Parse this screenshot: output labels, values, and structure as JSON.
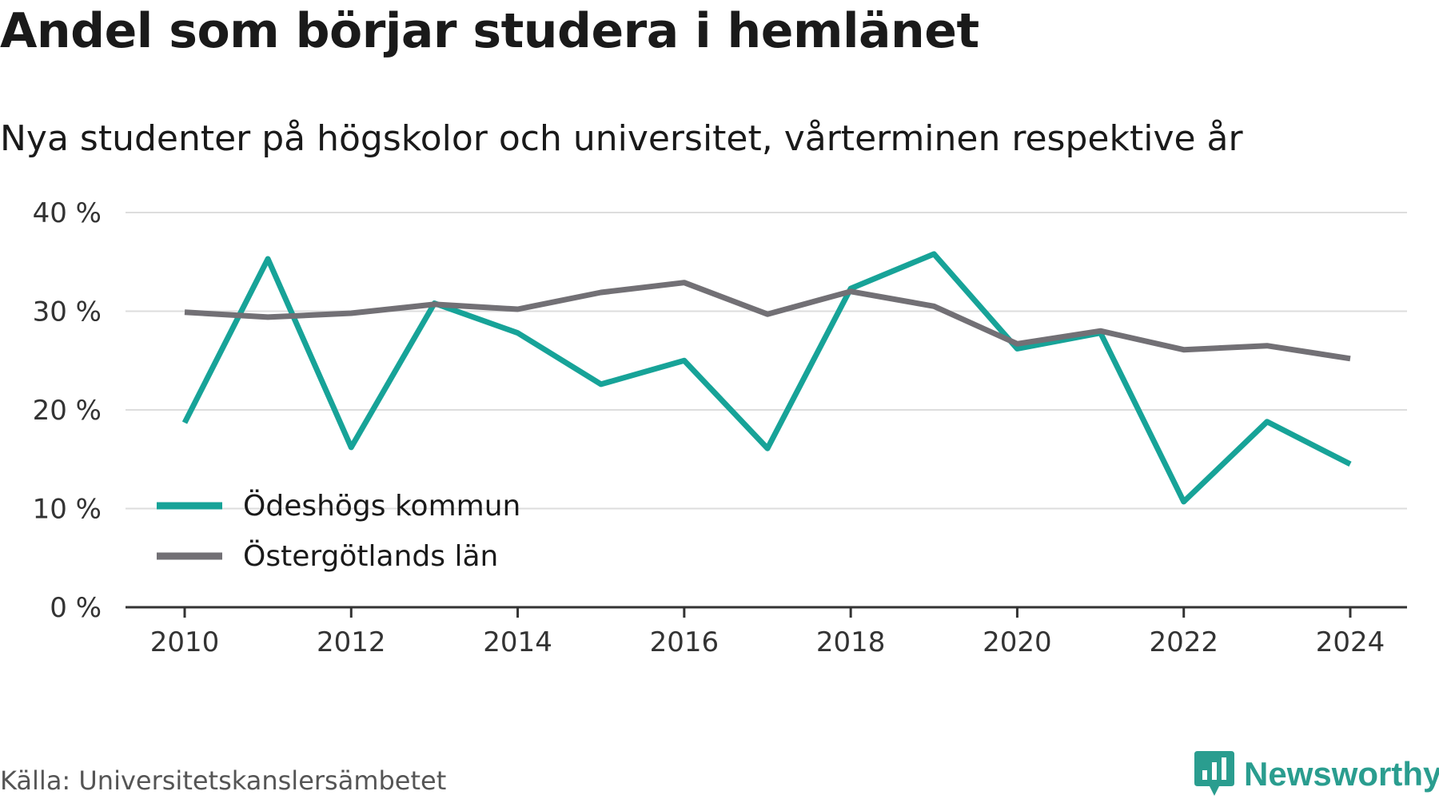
{
  "title": "Andel som börjar studera i hemlänet",
  "subtitle": "Nya studenter på högskolor och universitet, vårterminen respektive år",
  "source": "Källa: Universitetskanslersämbetet",
  "brand": {
    "name": "Newsworthy",
    "color": "#2a9d8f",
    "icon": "newsworthy-logo-icon"
  },
  "chart_data": {
    "type": "line",
    "title": "Andel som börjar studera i hemlänet",
    "subtitle": "Nya studenter på högskolor och universitet, vårterminen respektive år",
    "x": [
      2010,
      2011,
      2012,
      2013,
      2014,
      2015,
      2016,
      2017,
      2018,
      2019,
      2020,
      2021,
      2022,
      2023,
      2024
    ],
    "x_ticks": [
      "2010",
      "2012",
      "2014",
      "2016",
      "2018",
      "2020",
      "2022",
      "2024"
    ],
    "y_ticks": [
      "0 %",
      "10 %",
      "20 %",
      "30 %",
      "40 %"
    ],
    "ylim": [
      0,
      40
    ],
    "grid": true,
    "legend_position": "bottom-left",
    "series": [
      {
        "name": "Ödeshögs kommun",
        "color": "#17a398",
        "values": [
          18.7,
          35.3,
          16.2,
          30.8,
          27.8,
          22.6,
          25.0,
          16.1,
          32.3,
          35.8,
          26.2,
          27.8,
          10.7,
          18.8,
          14.5
        ]
      },
      {
        "name": "Östergötlands län",
        "color": "#727075",
        "values": [
          29.9,
          29.4,
          29.8,
          30.7,
          30.2,
          31.9,
          32.9,
          29.7,
          32.0,
          30.5,
          26.7,
          28.0,
          26.1,
          26.5,
          25.2
        ]
      }
    ]
  }
}
